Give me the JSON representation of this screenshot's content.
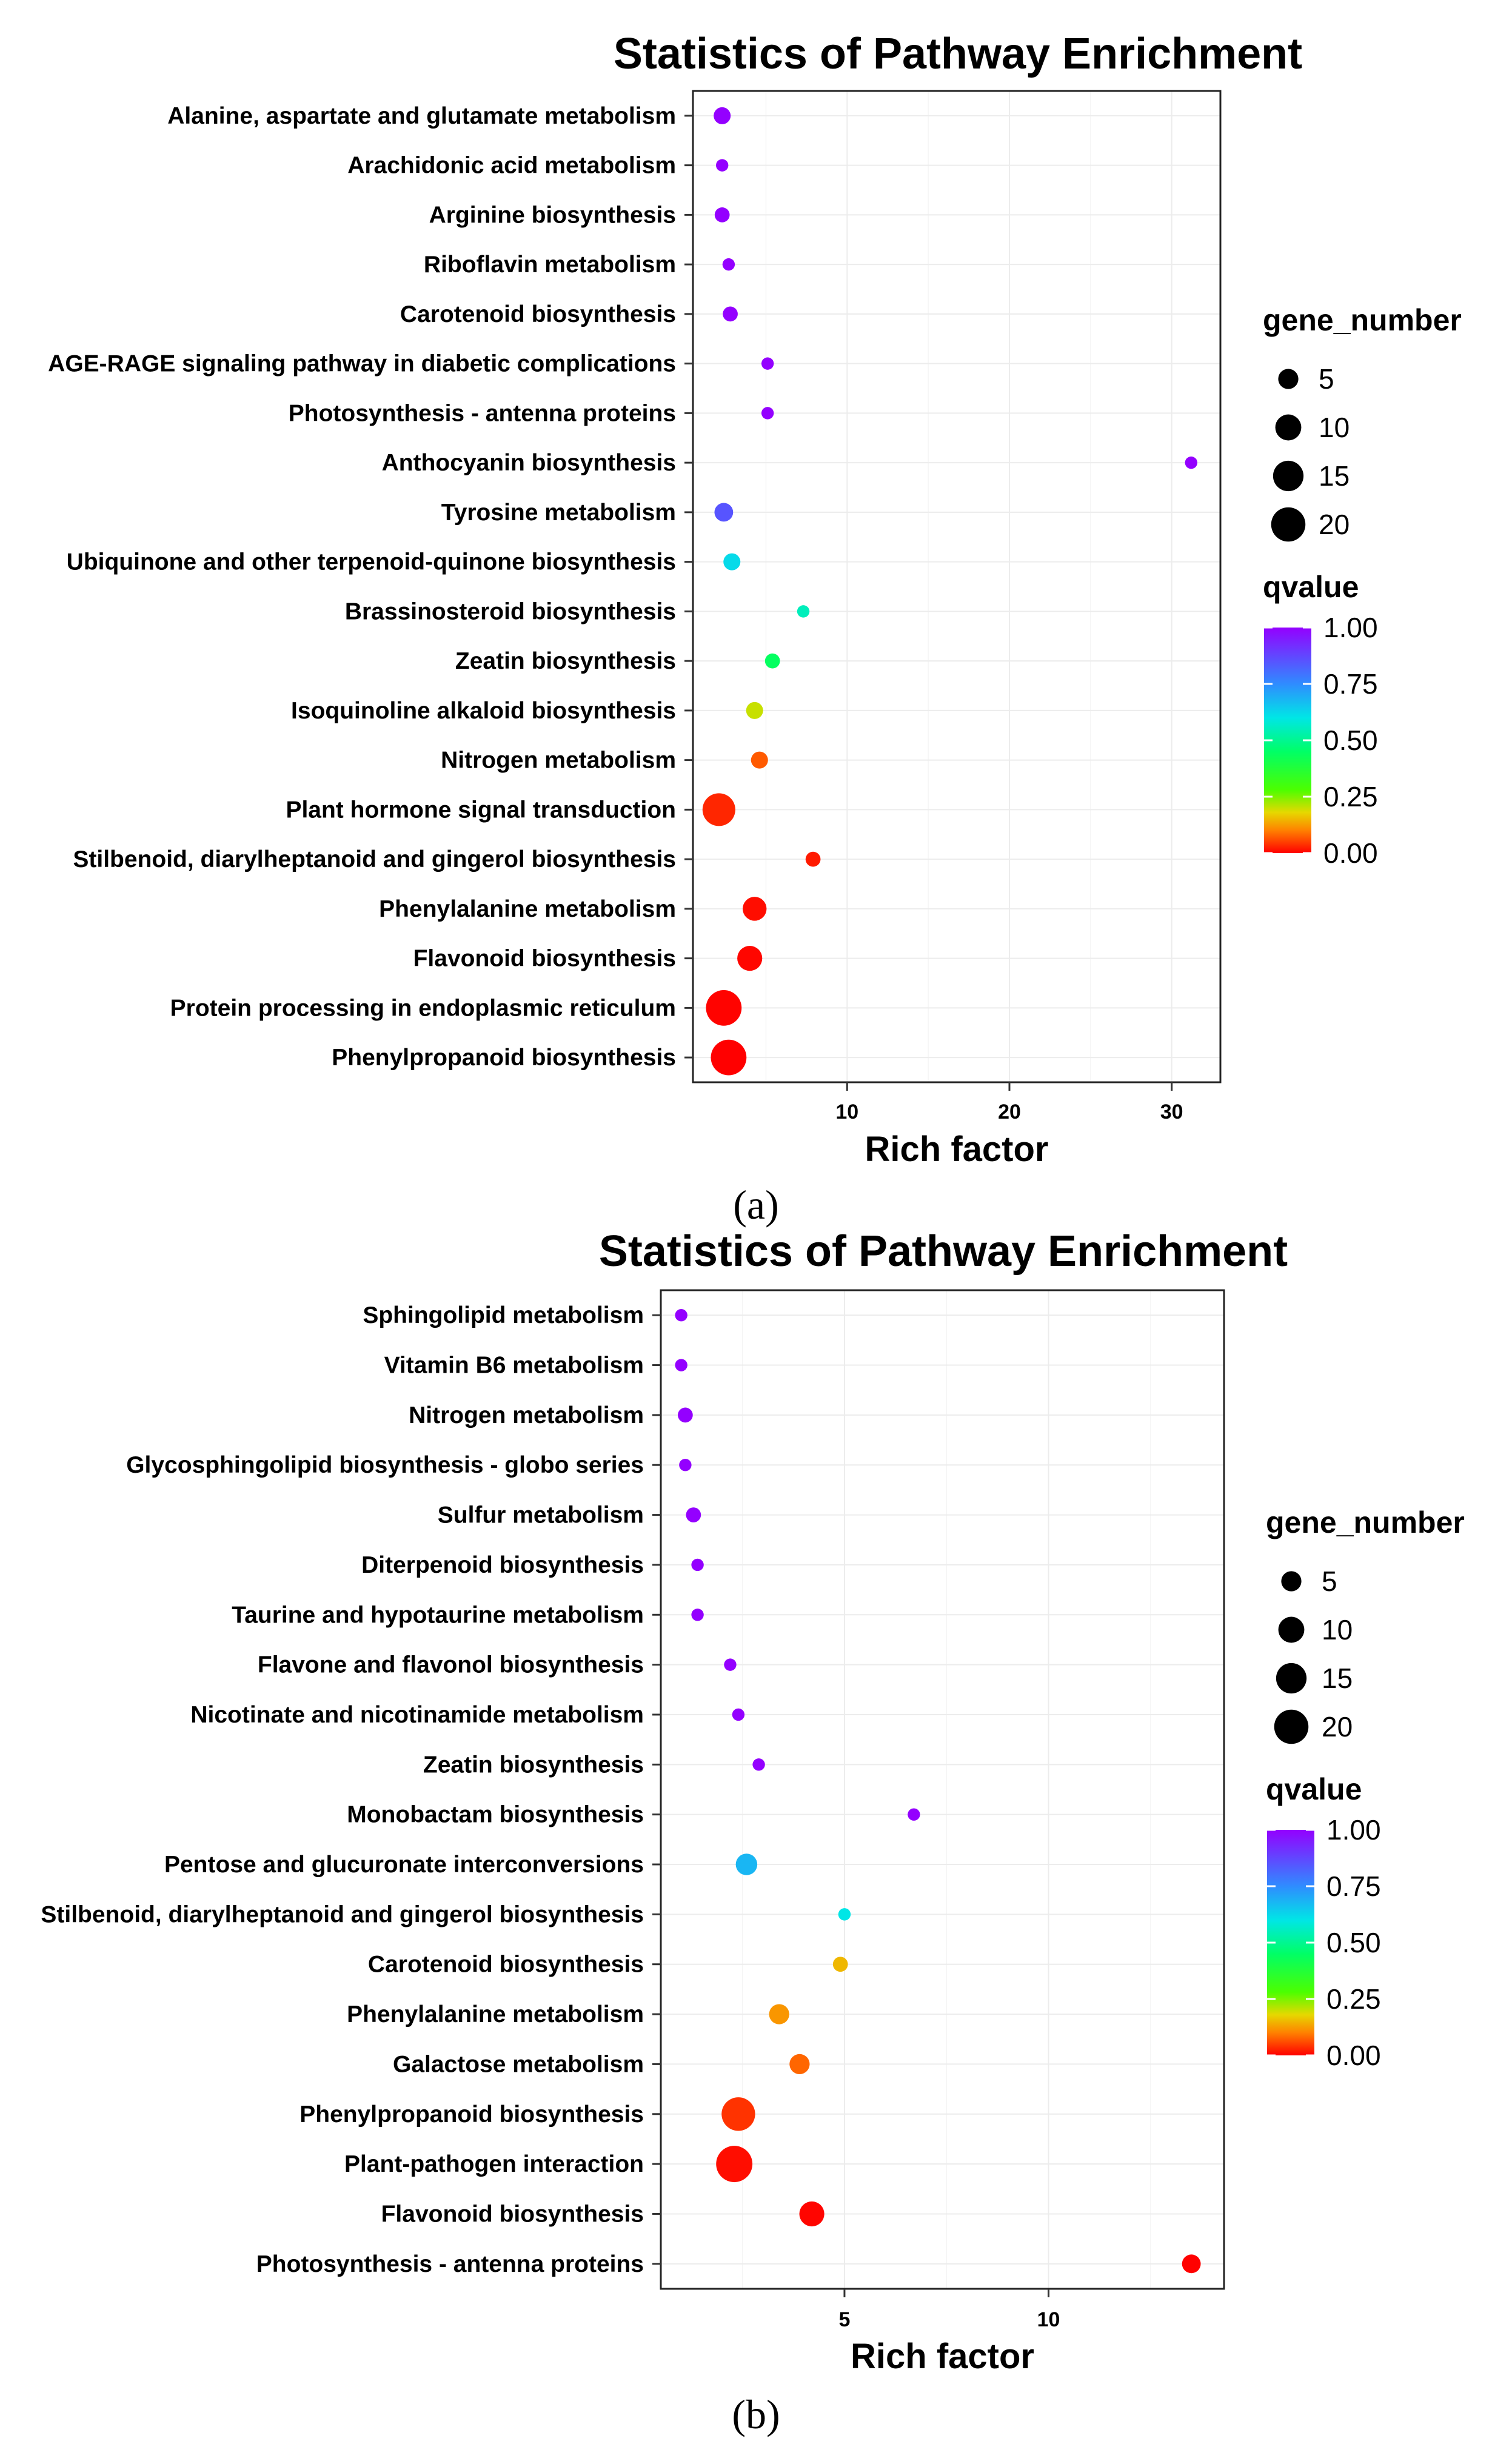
{
  "chart_data": [
    {
      "type": "scatter",
      "panel": "a",
      "title": "Statistics of Pathway Enrichment",
      "xlabel": "Rich factor",
      "ylabel": "",
      "caption": "(a)",
      "xlim": [
        0.5,
        33
      ],
      "xticks": [
        10,
        20,
        30
      ],
      "legend": {
        "size_title": "gene_number",
        "size_values": [
          5,
          10,
          15,
          20
        ],
        "color_title": "qvalue",
        "color_ticks": [
          "1.00",
          "0.75",
          "0.50",
          "0.25",
          "0.00"
        ],
        "placement": "right"
      },
      "points": [
        {
          "pathway": "Alanine, aspartate and glutamate metabolism",
          "rich_factor": 2.3,
          "gene_number": 3,
          "qvalue": 1.0
        },
        {
          "pathway": "Arachidonic acid metabolism",
          "rich_factor": 2.3,
          "gene_number": 1,
          "qvalue": 1.0
        },
        {
          "pathway": "Arginine biosynthesis",
          "rich_factor": 2.3,
          "gene_number": 2,
          "qvalue": 1.0
        },
        {
          "pathway": "Riboflavin metabolism",
          "rich_factor": 2.7,
          "gene_number": 1,
          "qvalue": 1.0
        },
        {
          "pathway": "Carotenoid biosynthesis",
          "rich_factor": 2.8,
          "gene_number": 2,
          "qvalue": 1.0
        },
        {
          "pathway": "AGE-RAGE signaling pathway in diabetic complications",
          "rich_factor": 5.1,
          "gene_number": 1,
          "qvalue": 1.0
        },
        {
          "pathway": "Photosynthesis - antenna proteins",
          "rich_factor": 5.1,
          "gene_number": 1,
          "qvalue": 1.0
        },
        {
          "pathway": "Anthocyanin biosynthesis",
          "rich_factor": 31.2,
          "gene_number": 1,
          "qvalue": 1.0
        },
        {
          "pathway": "Tyrosine metabolism",
          "rich_factor": 2.4,
          "gene_number": 4,
          "qvalue": 0.85
        },
        {
          "pathway": "Ubiquinone and other terpenoid-quinone biosynthesis",
          "rich_factor": 2.9,
          "gene_number": 3,
          "qvalue": 0.62
        },
        {
          "pathway": "Brassinosteroid biosynthesis",
          "rich_factor": 7.3,
          "gene_number": 1,
          "qvalue": 0.55
        },
        {
          "pathway": "Zeatin biosynthesis",
          "rich_factor": 5.4,
          "gene_number": 2,
          "qvalue": 0.44
        },
        {
          "pathway": "Isoquinoline alkaloid biosynthesis",
          "rich_factor": 4.3,
          "gene_number": 3,
          "qvalue": 0.2
        },
        {
          "pathway": "Nitrogen metabolism",
          "rich_factor": 4.6,
          "gene_number": 3,
          "qvalue": 0.07
        },
        {
          "pathway": "Plant hormone signal transduction",
          "rich_factor": 2.1,
          "gene_number": 18,
          "qvalue": 0.03
        },
        {
          "pathway": "Stilbenoid, diarylheptanoid and gingerol biosynthesis",
          "rich_factor": 7.9,
          "gene_number": 2,
          "qvalue": 0.02
        },
        {
          "pathway": "Phenylalanine metabolism",
          "rich_factor": 4.3,
          "gene_number": 8,
          "qvalue": 0.01
        },
        {
          "pathway": "Flavonoid biosynthesis",
          "rich_factor": 4.0,
          "gene_number": 9,
          "qvalue": 0.005
        },
        {
          "pathway": "Protein processing in endoplasmic reticulum",
          "rich_factor": 2.4,
          "gene_number": 22,
          "qvalue": 0.002
        },
        {
          "pathway": "Phenylpropanoid biosynthesis",
          "rich_factor": 2.7,
          "gene_number": 22,
          "qvalue": 0.0
        }
      ]
    },
    {
      "type": "scatter",
      "panel": "b",
      "title": "Statistics of Pathway Enrichment",
      "xlabel": "Rich factor",
      "ylabel": "",
      "caption": "(b)",
      "xlim": [
        0.5,
        14.3
      ],
      "xticks": [
        5,
        10
      ],
      "legend": {
        "size_title": "gene_number",
        "size_values": [
          5,
          10,
          15,
          20
        ],
        "color_title": "qvalue",
        "color_ticks": [
          "1.00",
          "0.75",
          "0.50",
          "0.25",
          "0.00"
        ],
        "placement": "right"
      },
      "points": [
        {
          "pathway": "Sphingolipid metabolism",
          "rich_factor": 1.0,
          "gene_number": 1,
          "qvalue": 1.0
        },
        {
          "pathway": "Vitamin B6 metabolism",
          "rich_factor": 1.0,
          "gene_number": 1,
          "qvalue": 1.0
        },
        {
          "pathway": "Nitrogen metabolism",
          "rich_factor": 1.1,
          "gene_number": 2,
          "qvalue": 1.0
        },
        {
          "pathway": "Glycosphingolipid biosynthesis - globo series",
          "rich_factor": 1.1,
          "gene_number": 1,
          "qvalue": 1.0
        },
        {
          "pathway": "Sulfur metabolism",
          "rich_factor": 1.3,
          "gene_number": 2,
          "qvalue": 1.0
        },
        {
          "pathway": "Diterpenoid biosynthesis",
          "rich_factor": 1.4,
          "gene_number": 1,
          "qvalue": 1.0
        },
        {
          "pathway": "Taurine and hypotaurine metabolism",
          "rich_factor": 1.4,
          "gene_number": 1,
          "qvalue": 1.0
        },
        {
          "pathway": "Flavone and flavonol biosynthesis",
          "rich_factor": 2.2,
          "gene_number": 1,
          "qvalue": 1.0
        },
        {
          "pathway": "Nicotinate and nicotinamide metabolism",
          "rich_factor": 2.4,
          "gene_number": 1,
          "qvalue": 1.0
        },
        {
          "pathway": "Zeatin biosynthesis",
          "rich_factor": 2.9,
          "gene_number": 1,
          "qvalue": 1.0
        },
        {
          "pathway": "Monobactam biosynthesis",
          "rich_factor": 6.7,
          "gene_number": 1,
          "qvalue": 1.0
        },
        {
          "pathway": "Pentose and glucuronate interconversions",
          "rich_factor": 2.6,
          "gene_number": 6,
          "qvalue": 0.68
        },
        {
          "pathway": "Stilbenoid, diarylheptanoid and gingerol biosynthesis",
          "rich_factor": 5.0,
          "gene_number": 1,
          "qvalue": 0.6
        },
        {
          "pathway": "Carotenoid biosynthesis",
          "rich_factor": 4.9,
          "gene_number": 2,
          "qvalue": 0.15
        },
        {
          "pathway": "Phenylalanine metabolism",
          "rich_factor": 3.4,
          "gene_number": 5,
          "qvalue": 0.12
        },
        {
          "pathway": "Galactose metabolism",
          "rich_factor": 3.9,
          "gene_number": 5,
          "qvalue": 0.08
        },
        {
          "pathway": "Phenylpropanoid biosynthesis",
          "rich_factor": 2.4,
          "gene_number": 19,
          "qvalue": 0.04
        },
        {
          "pathway": "Plant-pathogen interaction",
          "rich_factor": 2.3,
          "gene_number": 23,
          "qvalue": 0.01
        },
        {
          "pathway": "Flavonoid biosynthesis",
          "rich_factor": 4.2,
          "gene_number": 9,
          "qvalue": 0.004
        },
        {
          "pathway": "Photosynthesis - antenna proteins",
          "rich_factor": 13.5,
          "gene_number": 4,
          "qvalue": 0.001
        }
      ]
    }
  ]
}
